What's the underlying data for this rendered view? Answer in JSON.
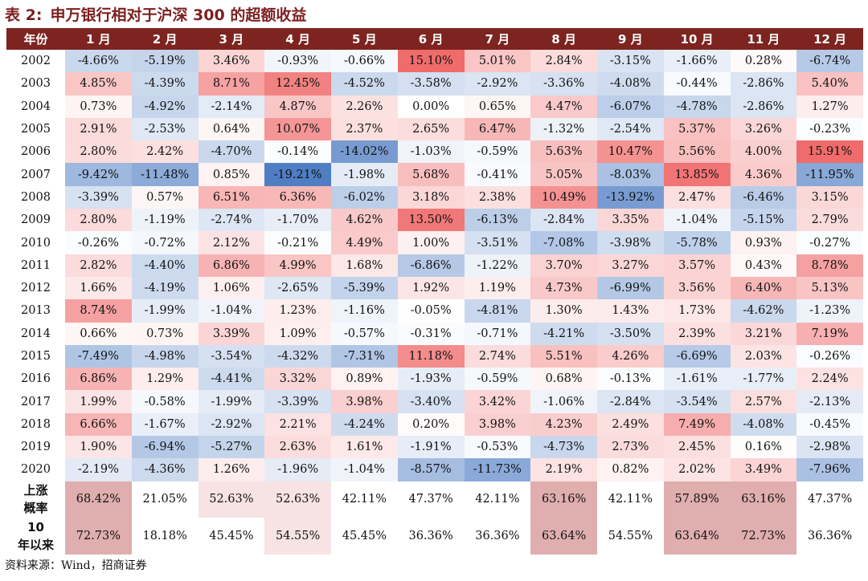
{
  "title": {
    "label": "表 2:",
    "text": "申万银行相对于沪深 300 的超额收益"
  },
  "header": [
    "年份",
    "1 月",
    "2 月",
    "3 月",
    "4 月",
    "5 月",
    "6 月",
    "7 月",
    "8 月",
    "9 月",
    "10 月",
    "11 月",
    "12 月"
  ],
  "source": "资料来源：Wind，招商证券",
  "colors": {
    "header_bg": "#7d2420",
    "positive": "#f06b6b",
    "negative": "#4f7ec4",
    "summary_highlight": "#e0aeae"
  },
  "chart_data": {
    "type": "heatmap",
    "title": "申万银行相对于沪深 300 的超额收益",
    "x": [
      "1 月",
      "2 月",
      "3 月",
      "4 月",
      "5 月",
      "6 月",
      "7 月",
      "8 月",
      "9 月",
      "10 月",
      "11 月",
      "12 月"
    ],
    "y": [
      "2002",
      "2003",
      "2004",
      "2005",
      "2006",
      "2007",
      "2008",
      "2009",
      "2010",
      "2011",
      "2012",
      "2013",
      "2014",
      "2015",
      "2016",
      "2017",
      "2018",
      "2019",
      "2020"
    ],
    "unit": "%",
    "values": [
      [
        -4.66,
        -5.19,
        3.46,
        -0.93,
        -0.66,
        15.1,
        5.01,
        2.84,
        -3.15,
        -1.66,
        0.28,
        -6.74
      ],
      [
        4.85,
        -4.39,
        8.71,
        12.45,
        -4.52,
        -3.58,
        -2.92,
        -3.36,
        -4.08,
        -0.44,
        -2.86,
        5.4
      ],
      [
        0.73,
        -4.92,
        -2.14,
        4.87,
        2.26,
        0.0,
        0.65,
        4.47,
        -6.07,
        -4.78,
        -2.86,
        1.27
      ],
      [
        2.91,
        -2.53,
        0.64,
        10.07,
        2.37,
        2.65,
        6.47,
        -1.32,
        -2.54,
        5.37,
        3.26,
        -0.23
      ],
      [
        2.8,
        2.42,
        -4.7,
        -0.14,
        -14.02,
        -1.03,
        -0.59,
        5.63,
        10.47,
        5.56,
        4.0,
        15.91
      ],
      [
        -9.42,
        -11.48,
        0.85,
        -19.21,
        -1.98,
        5.68,
        -0.41,
        5.05,
        -8.03,
        13.85,
        4.36,
        -11.95
      ],
      [
        -3.39,
        0.57,
        6.51,
        6.36,
        -6.02,
        3.18,
        2.38,
        10.49,
        -13.92,
        2.47,
        -6.46,
        3.15
      ],
      [
        2.8,
        -1.19,
        -2.74,
        -1.7,
        4.62,
        13.5,
        -6.13,
        -2.84,
        3.35,
        -1.04,
        -5.15,
        2.79
      ],
      [
        -0.26,
        -0.72,
        2.12,
        -0.21,
        4.49,
        1.0,
        -3.51,
        -7.08,
        -3.98,
        -5.78,
        0.93,
        -0.27
      ],
      [
        2.82,
        -4.4,
        6.86,
        4.99,
        1.68,
        -6.86,
        -1.22,
        3.7,
        3.27,
        3.57,
        0.43,
        8.78
      ],
      [
        1.66,
        -4.19,
        1.06,
        -2.65,
        -5.39,
        1.92,
        1.19,
        4.73,
        -6.99,
        3.56,
        6.4,
        5.13
      ],
      [
        8.74,
        -1.99,
        -1.04,
        1.23,
        -1.16,
        -0.05,
        -4.81,
        1.3,
        1.43,
        1.73,
        -4.62,
        -1.23
      ],
      [
        0.66,
        0.73,
        3.39,
        1.09,
        -0.57,
        -0.31,
        -0.71,
        -4.21,
        -3.5,
        2.39,
        3.21,
        7.19
      ],
      [
        -7.49,
        -4.98,
        -3.54,
        -4.32,
        -7.31,
        11.18,
        2.74,
        5.51,
        4.26,
        -6.69,
        2.03,
        -0.26
      ],
      [
        6.86,
        1.29,
        -4.41,
        3.32,
        0.89,
        -1.93,
        -0.59,
        0.68,
        -0.13,
        -1.61,
        -1.77,
        2.24
      ],
      [
        1.99,
        -0.58,
        -1.99,
        -3.39,
        3.98,
        -3.4,
        3.42,
        -1.06,
        -2.84,
        -3.54,
        2.57,
        -2.13
      ],
      [
        6.66,
        -1.67,
        -2.92,
        2.21,
        -4.24,
        0.2,
        3.98,
        4.23,
        2.49,
        7.49,
        -4.08,
        -0.45
      ],
      [
        1.9,
        -6.94,
        -5.27,
        2.63,
        1.61,
        -1.91,
        -0.53,
        -4.73,
        2.73,
        2.45,
        0.16,
        -2.98
      ],
      [
        -2.19,
        -4.36,
        1.26,
        -1.96,
        -1.04,
        -8.57,
        -11.73,
        2.19,
        0.82,
        2.02,
        3.49,
        -7.96
      ]
    ],
    "summary": [
      {
        "label": "上涨概率",
        "highlight": true,
        "values": [
          68.42,
          21.05,
          52.63,
          52.63,
          42.11,
          47.37,
          42.11,
          63.16,
          42.11,
          57.89,
          63.16,
          47.37
        ]
      },
      {
        "label": "10 年以来",
        "highlight": true,
        "values": [
          72.73,
          18.18,
          45.45,
          54.55,
          45.45,
          36.36,
          36.36,
          63.64,
          54.55,
          63.64,
          72.73,
          36.36
        ]
      }
    ],
    "summary_highlight_cols": [
      0,
      7,
      9,
      10
    ],
    "summary_white_cols": [
      8
    ]
  }
}
